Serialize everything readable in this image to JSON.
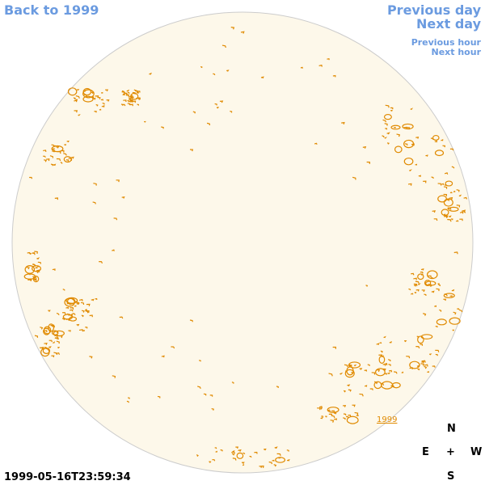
{
  "nav": {
    "back_label": "Back to 1999",
    "previous_day": "Previous day",
    "next_day": "Next day",
    "previous_hour": "Previous hour",
    "next_hour": "Next hour"
  },
  "compass": {
    "north": "N",
    "south": "S",
    "east": "E",
    "west": "W",
    "center": "+"
  },
  "timestamp": "1999-05-16T23:59:34",
  "year_label": "1999",
  "colors": {
    "disk_fill": "#fdf8ea",
    "disk_border": "#cccccc",
    "contour": "#e08a00",
    "link": "#6b9be0"
  }
}
